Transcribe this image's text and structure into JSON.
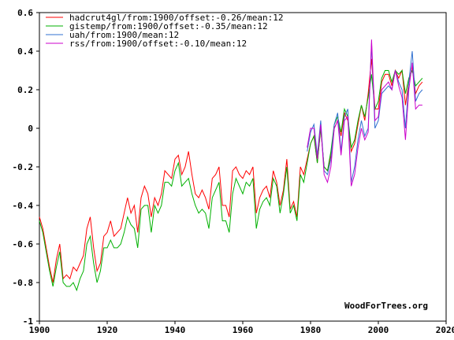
{
  "chart_data": {
    "type": "line",
    "title": "",
    "xlabel": "",
    "ylabel": "",
    "xlim": [
      1900,
      2020
    ],
    "ylim": [
      -1,
      0.6
    ],
    "x_ticks": [
      1900,
      1920,
      1940,
      1960,
      1980,
      2000,
      2020
    ],
    "y_ticks": [
      -1,
      -0.8,
      -0.6,
      -0.4,
      -0.2,
      0,
      0.2,
      0.4,
      0.6
    ],
    "x_tick_labels": [
      "1900",
      "1920",
      "1940",
      "1960",
      "1980",
      "2000",
      "2020"
    ],
    "y_tick_labels": [
      "-1",
      "-0.8",
      "-0.6",
      "-0.4",
      "-0.2",
      "0",
      "0.2",
      "0.4",
      "0.6"
    ],
    "legend_position": "top-left",
    "credit": "WoodForTrees.org",
    "series": [
      {
        "name": "hadcrut4gl/from:1900/offset:-0.26/mean:12",
        "color": "#ff0000",
        "x": [
          1900,
          1901,
          1902,
          1903,
          1904,
          1905,
          1906,
          1907,
          1908,
          1909,
          1910,
          1911,
          1912,
          1913,
          1914,
          1915,
          1916,
          1917,
          1918,
          1919,
          1920,
          1921,
          1922,
          1923,
          1924,
          1925,
          1926,
          1927,
          1928,
          1929,
          1930,
          1931,
          1932,
          1933,
          1934,
          1935,
          1936,
          1937,
          1938,
          1939,
          1940,
          1941,
          1942,
          1943,
          1944,
          1945,
          1946,
          1947,
          1948,
          1949,
          1950,
          1951,
          1952,
          1953,
          1954,
          1955,
          1956,
          1957,
          1958,
          1959,
          1960,
          1961,
          1962,
          1963,
          1964,
          1965,
          1966,
          1967,
          1968,
          1969,
          1970,
          1971,
          1972,
          1973,
          1974,
          1975,
          1976,
          1977,
          1978,
          1979,
          1980,
          1981,
          1982,
          1983,
          1984,
          1985,
          1986,
          1987,
          1988,
          1989,
          1990,
          1991,
          1992,
          1993,
          1994,
          1995,
          1996,
          1997,
          1998,
          1999,
          2000,
          2001,
          2002,
          2003,
          2004,
          2005,
          2006,
          2007,
          2008,
          2009,
          2010,
          2011,
          2012,
          2013
        ],
        "y": [
          -0.46,
          -0.52,
          -0.62,
          -0.72,
          -0.8,
          -0.68,
          -0.6,
          -0.78,
          -0.76,
          -0.78,
          -0.72,
          -0.74,
          -0.7,
          -0.66,
          -0.52,
          -0.46,
          -0.62,
          -0.74,
          -0.7,
          -0.56,
          -0.54,
          -0.48,
          -0.56,
          -0.54,
          -0.52,
          -0.44,
          -0.36,
          -0.44,
          -0.4,
          -0.54,
          -0.36,
          -0.3,
          -0.34,
          -0.46,
          -0.36,
          -0.4,
          -0.34,
          -0.22,
          -0.24,
          -0.26,
          -0.16,
          -0.14,
          -0.24,
          -0.2,
          -0.12,
          -0.24,
          -0.34,
          -0.36,
          -0.32,
          -0.36,
          -0.42,
          -0.26,
          -0.24,
          -0.2,
          -0.4,
          -0.4,
          -0.46,
          -0.22,
          -0.2,
          -0.24,
          -0.26,
          -0.22,
          -0.24,
          -0.2,
          -0.44,
          -0.36,
          -0.32,
          -0.3,
          -0.36,
          -0.22,
          -0.28,
          -0.4,
          -0.32,
          -0.16,
          -0.42,
          -0.38,
          -0.46,
          -0.2,
          -0.24,
          -0.16,
          -0.08,
          -0.04,
          -0.18,
          0.0,
          -0.2,
          -0.22,
          -0.14,
          0.0,
          0.04,
          -0.04,
          0.08,
          0.04,
          -0.12,
          -0.08,
          0.02,
          0.12,
          0.04,
          0.18,
          0.36,
          0.1,
          0.1,
          0.24,
          0.28,
          0.28,
          0.22,
          0.3,
          0.26,
          0.3,
          0.12,
          0.24,
          0.32,
          0.18,
          0.22,
          0.24
        ]
      },
      {
        "name": "gistemp/from:1900/offset:-0.35/mean:12",
        "color": "#00b000",
        "x": [
          1900,
          1901,
          1902,
          1903,
          1904,
          1905,
          1906,
          1907,
          1908,
          1909,
          1910,
          1911,
          1912,
          1913,
          1914,
          1915,
          1916,
          1917,
          1918,
          1919,
          1920,
          1921,
          1922,
          1923,
          1924,
          1925,
          1926,
          1927,
          1928,
          1929,
          1930,
          1931,
          1932,
          1933,
          1934,
          1935,
          1936,
          1937,
          1938,
          1939,
          1940,
          1941,
          1942,
          1943,
          1944,
          1945,
          1946,
          1947,
          1948,
          1949,
          1950,
          1951,
          1952,
          1953,
          1954,
          1955,
          1956,
          1957,
          1958,
          1959,
          1960,
          1961,
          1962,
          1963,
          1964,
          1965,
          1966,
          1967,
          1968,
          1969,
          1970,
          1971,
          1972,
          1973,
          1974,
          1975,
          1976,
          1977,
          1978,
          1979,
          1980,
          1981,
          1982,
          1983,
          1984,
          1985,
          1986,
          1987,
          1988,
          1989,
          1990,
          1991,
          1992,
          1993,
          1994,
          1995,
          1996,
          1997,
          1998,
          1999,
          2000,
          2001,
          2002,
          2003,
          2004,
          2005,
          2006,
          2007,
          2008,
          2009,
          2010,
          2011,
          2012,
          2013
        ],
        "y": [
          -0.48,
          -0.54,
          -0.64,
          -0.74,
          -0.82,
          -0.72,
          -0.64,
          -0.8,
          -0.82,
          -0.82,
          -0.8,
          -0.84,
          -0.78,
          -0.74,
          -0.6,
          -0.56,
          -0.7,
          -0.8,
          -0.74,
          -0.62,
          -0.62,
          -0.58,
          -0.62,
          -0.62,
          -0.6,
          -0.54,
          -0.46,
          -0.5,
          -0.52,
          -0.62,
          -0.42,
          -0.4,
          -0.4,
          -0.54,
          -0.4,
          -0.44,
          -0.4,
          -0.28,
          -0.28,
          -0.3,
          -0.22,
          -0.18,
          -0.3,
          -0.28,
          -0.26,
          -0.34,
          -0.4,
          -0.44,
          -0.42,
          -0.44,
          -0.52,
          -0.36,
          -0.32,
          -0.28,
          -0.48,
          -0.48,
          -0.54,
          -0.34,
          -0.26,
          -0.3,
          -0.34,
          -0.28,
          -0.3,
          -0.26,
          -0.52,
          -0.42,
          -0.38,
          -0.36,
          -0.4,
          -0.26,
          -0.3,
          -0.44,
          -0.34,
          -0.2,
          -0.44,
          -0.4,
          -0.48,
          -0.24,
          -0.28,
          -0.18,
          -0.08,
          -0.04,
          -0.18,
          0.0,
          -0.2,
          -0.22,
          -0.12,
          0.02,
          0.06,
          -0.02,
          0.1,
          0.06,
          -0.1,
          -0.06,
          0.04,
          0.12,
          0.06,
          0.16,
          0.28,
          0.1,
          0.14,
          0.26,
          0.3,
          0.3,
          0.24,
          0.3,
          0.28,
          0.3,
          0.18,
          0.26,
          0.3,
          0.22,
          0.24,
          0.26
        ]
      },
      {
        "name": "uah/from:1900/mean:12",
        "color": "#3070d0",
        "x": [
          1979,
          1980,
          1981,
          1982,
          1983,
          1984,
          1985,
          1986,
          1987,
          1988,
          1989,
          1990,
          1991,
          1992,
          1993,
          1994,
          1995,
          1996,
          1997,
          1998,
          1999,
          2000,
          2001,
          2002,
          2003,
          2004,
          2005,
          2006,
          2007,
          2008,
          2009,
          2010,
          2011,
          2012,
          2013
        ],
        "y": [
          -0.12,
          -0.02,
          0.02,
          -0.14,
          0.04,
          -0.22,
          -0.24,
          -0.16,
          0.02,
          0.08,
          -0.12,
          0.06,
          0.1,
          -0.28,
          -0.2,
          -0.06,
          0.04,
          -0.04,
          0.0,
          0.44,
          0.0,
          0.04,
          0.18,
          0.2,
          0.22,
          0.2,
          0.3,
          0.24,
          0.2,
          0.0,
          0.24,
          0.4,
          0.14,
          0.18,
          0.2
        ]
      },
      {
        "name": "rss/from:1900/offset:-0.10/mean:12",
        "color": "#cc00cc",
        "x": [
          1979,
          1980,
          1981,
          1982,
          1983,
          1984,
          1985,
          1986,
          1987,
          1988,
          1989,
          1990,
          1991,
          1992,
          1993,
          1994,
          1995,
          1996,
          1997,
          1998,
          1999,
          2000,
          2001,
          2002,
          2003,
          2004,
          2005,
          2006,
          2007,
          2008,
          2009,
          2010,
          2011,
          2012,
          2013
        ],
        "y": [
          -0.1,
          0.0,
          0.0,
          -0.16,
          0.02,
          -0.24,
          -0.28,
          -0.2,
          0.0,
          0.04,
          -0.14,
          0.04,
          0.06,
          -0.3,
          -0.24,
          -0.1,
          0.0,
          -0.06,
          -0.02,
          0.46,
          0.04,
          0.06,
          0.2,
          0.22,
          0.24,
          0.2,
          0.3,
          0.22,
          0.16,
          -0.06,
          0.2,
          0.34,
          0.1,
          0.12,
          0.12
        ]
      }
    ]
  }
}
